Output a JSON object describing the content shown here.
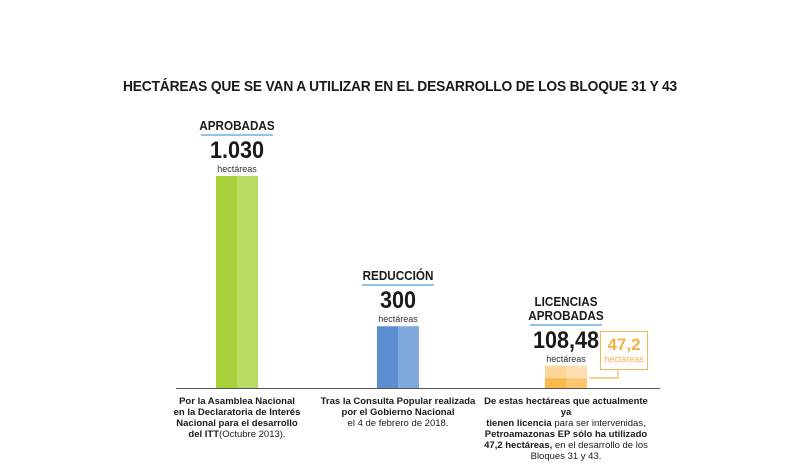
{
  "chart_data": {
    "type": "bar",
    "title": "HECTÁREAS QUE SE VAN A UTILIZAR EN EL DESARROLLO DE LOS BLOQUE 31 Y 43",
    "categories": [
      "APROBADAS",
      "REDUCCIÓN",
      "LICENCIAS APROBADAS"
    ],
    "values": [
      1030,
      300,
      108.48
    ],
    "value_labels": [
      "1.030",
      "300",
      "108,48"
    ],
    "unit": "hectáreas",
    "subset": {
      "category": "LICENCIAS APROBADAS",
      "value": 47.2,
      "label": "47,2",
      "unit": "hectáreas"
    },
    "colors": [
      "#a6d13a",
      "#5b8fd2",
      "#fdd699"
    ],
    "subset_color": "#fbb850",
    "descriptions": [
      [
        {
          "t": "Por la Asamblea Nacional",
          "b": true
        },
        {
          "t": "en la Declaratoria de Interés",
          "b": true
        },
        {
          "t": "Nacional para el desarrollo",
          "b": true
        },
        {
          "t": "del ITT",
          "b": true,
          "n": "(Octubre 2013)."
        }
      ],
      [
        {
          "t": "Tras la Consulta Popular realizada",
          "b": true
        },
        {
          "t": "por el Gobierno Nacional",
          "b": true
        },
        {
          "t": "el 4 de febrero de 2018.",
          "b": false
        }
      ],
      [
        {
          "t": "De estas hectáreas que actualmente ya",
          "b": true
        },
        {
          "t": "tienen licencia",
          "b": true,
          "n": " para ser intervenidas,"
        },
        {
          "t": "Petroamazonas EP sólo ha utilizado",
          "b": true
        },
        {
          "t": "47,2 hectáreas,",
          "b": true,
          "n": " en el desarrollo de los"
        },
        {
          "t": "Bloques 31 y 43.",
          "b": false
        }
      ]
    ]
  }
}
